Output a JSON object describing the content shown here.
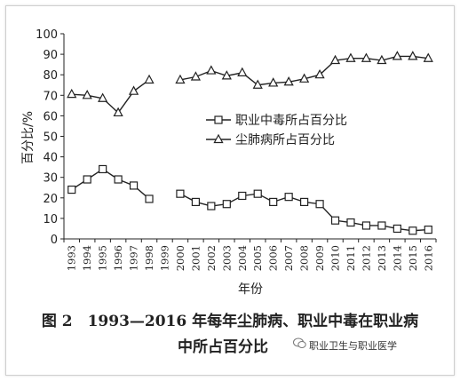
{
  "chart_data": {
    "type": "line",
    "x": [
      "1993",
      "1994",
      "1995",
      "1996",
      "1997",
      "1998",
      "1999",
      "2000",
      "2001",
      "2002",
      "2003",
      "2004",
      "2005",
      "2006",
      "2007",
      "2008",
      "2009",
      "2010",
      "2011",
      "2012",
      "2013",
      "2014",
      "2015",
      "2016"
    ],
    "ylim": [
      0,
      100
    ],
    "yticks": [
      "0",
      "10",
      "20",
      "30",
      "40",
      "50",
      "60",
      "70",
      "80",
      "90",
      "100"
    ],
    "ylabel": "百分比/%",
    "xlabel": "年份",
    "series": [
      {
        "name": "职业中毒所占百分比",
        "marker": "square",
        "values": [
          24,
          29,
          34,
          29,
          26,
          19.5,
          null,
          22,
          18,
          16,
          17,
          21,
          22,
          18,
          20.5,
          18,
          17,
          9,
          8,
          6.5,
          6.5,
          5,
          4,
          4.5
        ]
      },
      {
        "name": "尘肺病所占百分比",
        "marker": "triangle",
        "values": [
          70.5,
          70,
          68.5,
          61.5,
          72,
          77.5,
          null,
          77.5,
          79,
          82,
          79.5,
          81,
          75,
          76,
          76.5,
          78,
          80,
          87,
          88,
          88,
          87,
          89,
          89,
          88
        ]
      }
    ],
    "grid": false,
    "legend_position": "right"
  },
  "caption": {
    "line1": "图 2　1993—2016 年每年尘肺病、职业中毒在职业病",
    "line2": "中所占百分比"
  },
  "watermark": "职业卫生与职业医学"
}
